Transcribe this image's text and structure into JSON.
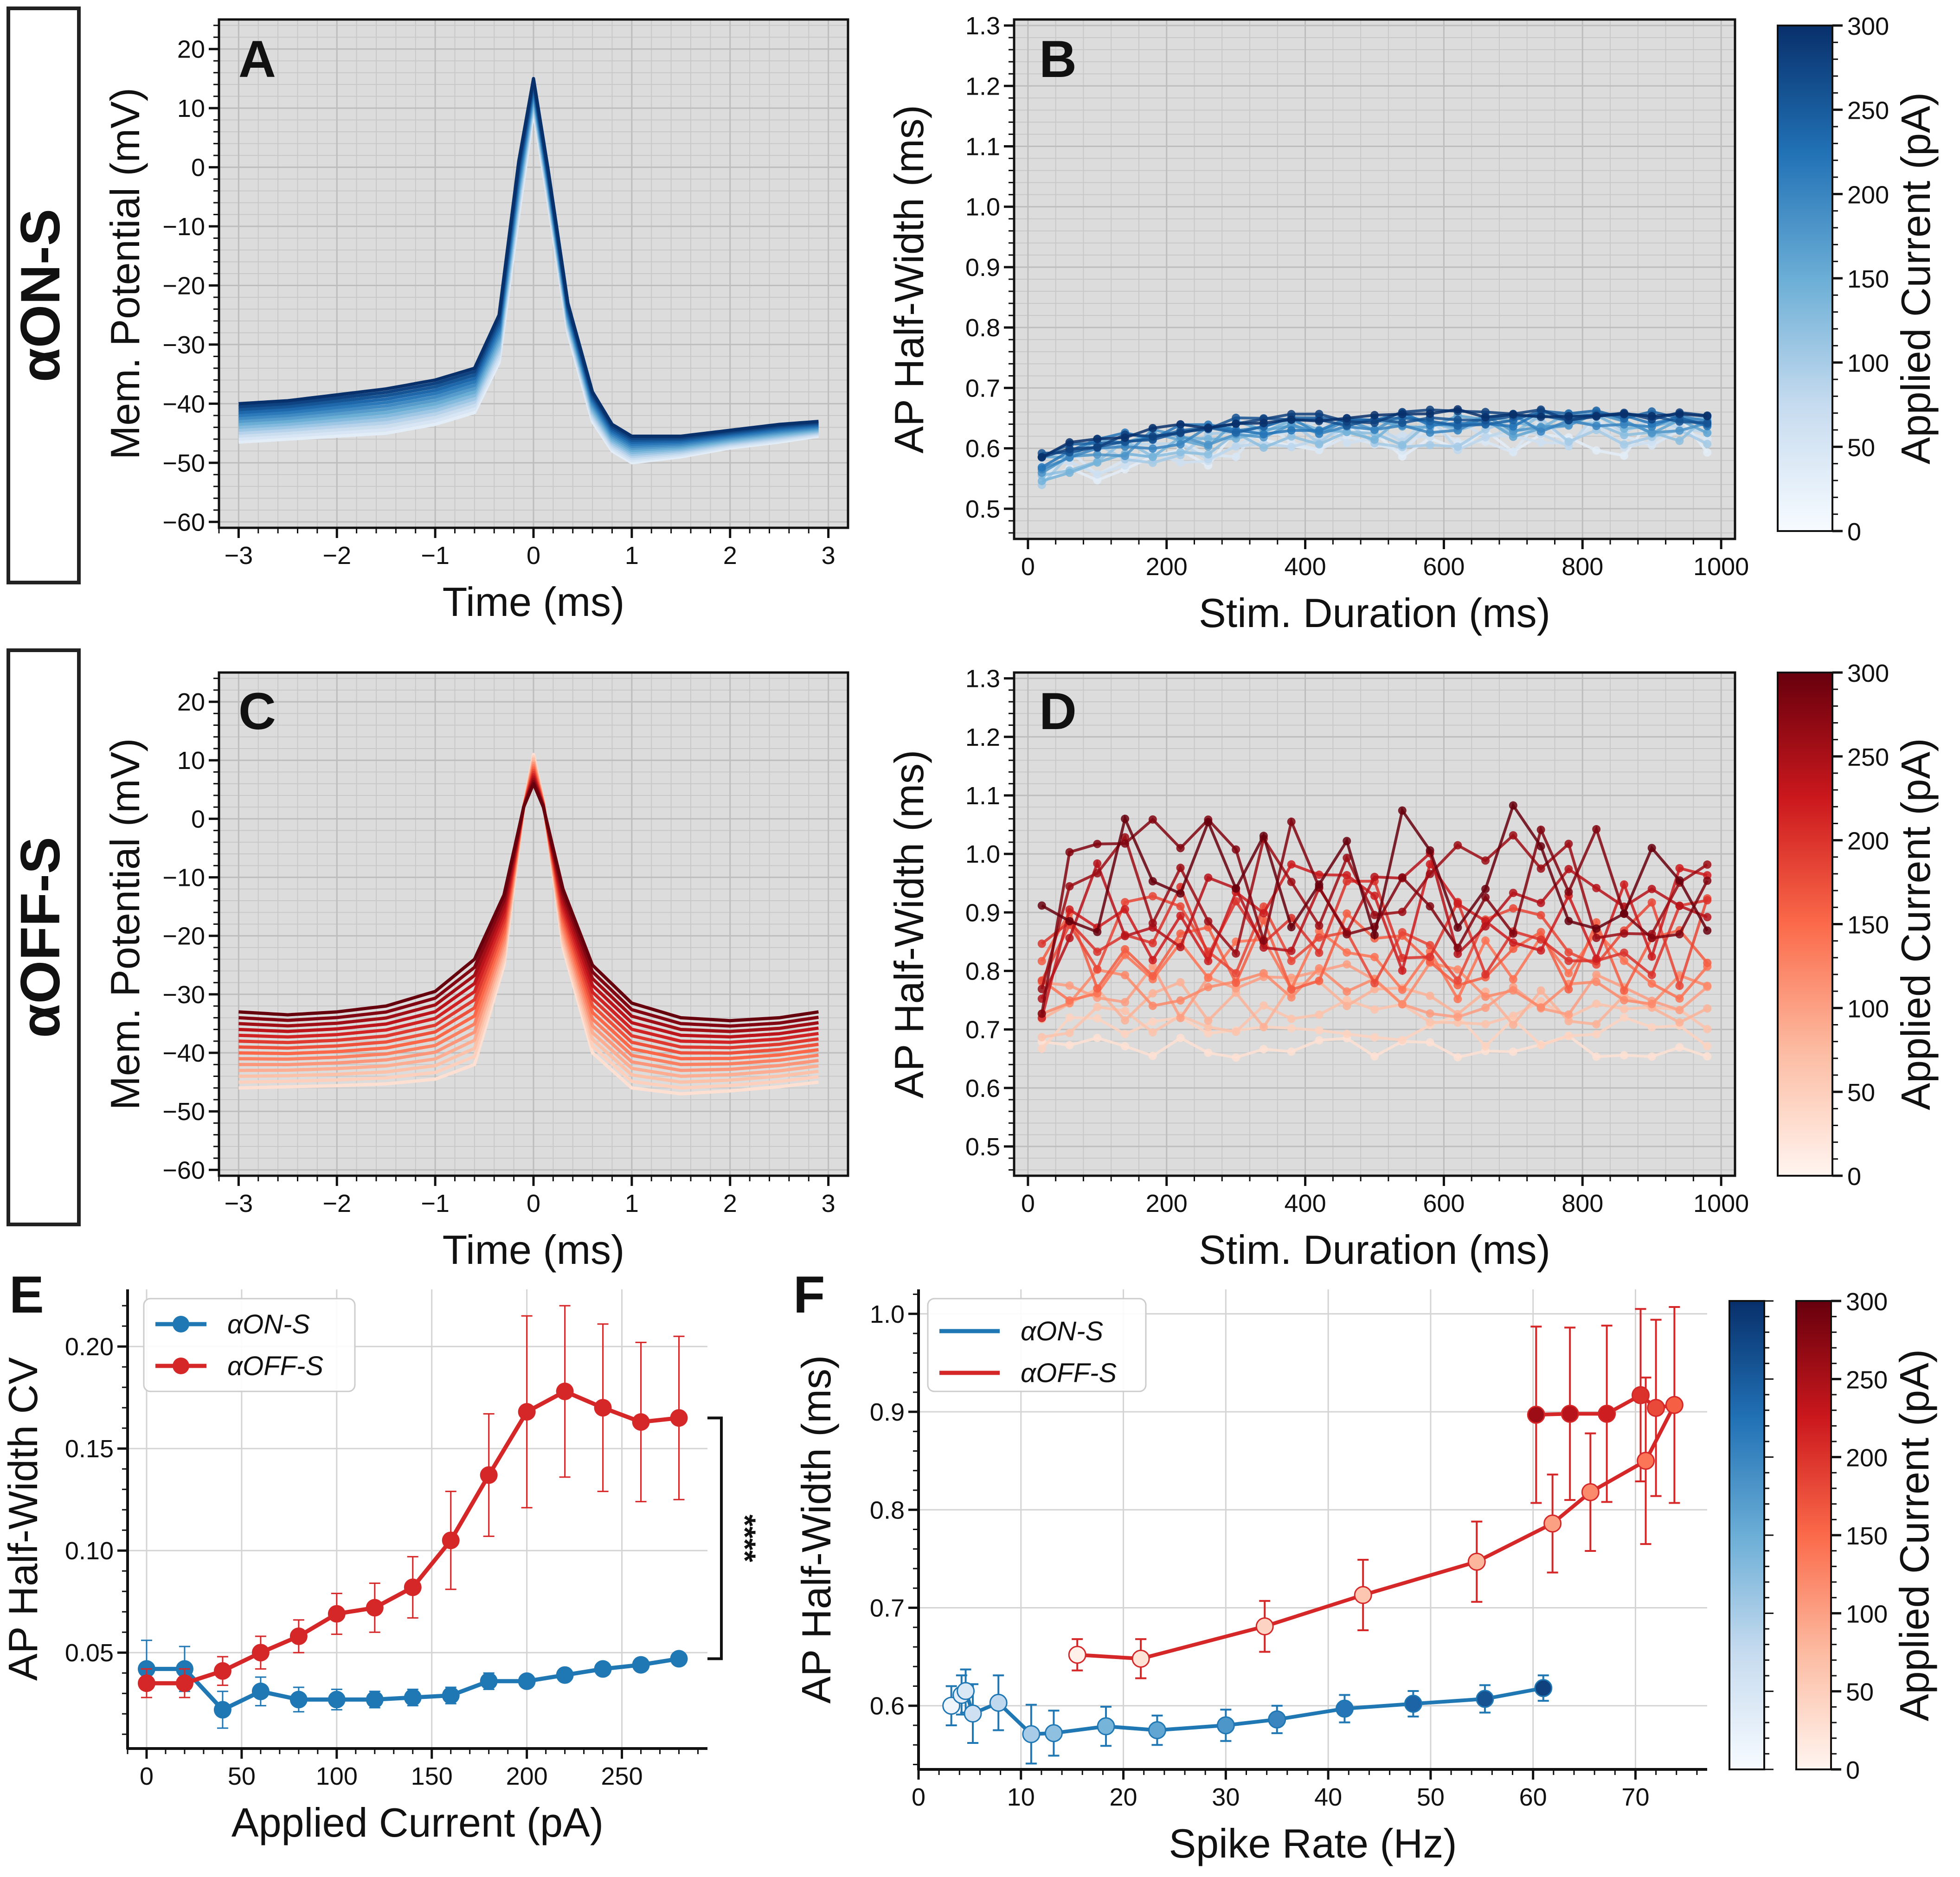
{
  "row_labels": {
    "on": "αON-S",
    "off": "αOFF-S"
  },
  "colors": {
    "on_line": "#1f77b4",
    "off_line": "#d62728",
    "panel_bg": "#dcdcdc"
  },
  "chart_data": [
    {
      "panel": "A",
      "type": "line",
      "xlabel": "Time (ms)",
      "ylabel": "Mem. Potential (mV)",
      "xlim": [
        -3.2,
        3.2
      ],
      "ylim": [
        -61,
        25
      ],
      "xticks": [
        -3,
        -2,
        -1,
        0,
        1,
        2,
        3
      ],
      "xtick_labels": [
        "−3",
        "−2",
        "−1",
        "0",
        "1",
        "2",
        "3"
      ],
      "yticks": [
        -60,
        -50,
        -40,
        -30,
        -20,
        -10,
        0,
        10,
        20
      ],
      "ytick_labels": [
        "−60",
        "−50",
        "−40",
        "−30",
        "−20",
        "−10",
        "0",
        "10",
        "20"
      ],
      "colormap": "Blues",
      "n_traces": 14,
      "trace_model": {
        "t": [
          -3,
          -2.5,
          -2,
          -1.5,
          -1,
          -0.6,
          -0.35,
          -0.15,
          0,
          0.15,
          0.35,
          0.6,
          0.8,
          1.0,
          1.5,
          2,
          2.5,
          2.9
        ],
        "start": [
          -46.5,
          -46.0,
          -45.5,
          -45.0,
          -43.5,
          -41.5,
          -33,
          -8,
          9.5,
          -6,
          -28,
          -43,
          -48,
          -50,
          -49,
          -47.5,
          -46.5,
          -45.5
        ],
        "end": [
          -40.0,
          -39.5,
          -38.5,
          -37.5,
          -36.0,
          -34.0,
          -25,
          1,
          15,
          -0.5,
          -23,
          -38,
          -43.5,
          -45.5,
          -45.5,
          -44.5,
          -43.5,
          -43
        ]
      }
    },
    {
      "panel": "B",
      "type": "line",
      "xlabel": "Stim. Duration (ms)",
      "ylabel": "AP Half-Width (ms)",
      "xlim": [
        -20,
        1020
      ],
      "ylim": [
        0.45,
        1.31
      ],
      "xticks": [
        0,
        200,
        400,
        600,
        800,
        1000
      ],
      "xtick_labels": [
        "0",
        "200",
        "400",
        "600",
        "800",
        "1000"
      ],
      "yticks": [
        0.5,
        0.6,
        0.7,
        0.8,
        0.9,
        1.0,
        1.1,
        1.2,
        1.3
      ],
      "ytick_labels": [
        "0.5",
        "0.6",
        "0.7",
        "0.8",
        "0.9",
        "1.0",
        "1.1",
        "1.2",
        "1.3"
      ],
      "colormap": "Blues",
      "n_traces": 15,
      "x_points": [
        20,
        60,
        100,
        140,
        180,
        220,
        260,
        300,
        340,
        380,
        420,
        460,
        500,
        540,
        580,
        620,
        660,
        700,
        740,
        780,
        820,
        860,
        900,
        940,
        980
      ],
      "baseline_start": 0.56,
      "baseline_plateau": 0.64,
      "noise_low_current": 0.035,
      "noise_high_current": 0.008
    },
    {
      "panel": "C",
      "type": "line",
      "xlabel": "Time (ms)",
      "ylabel": "Mem. Potential (mV)",
      "xlim": [
        -3.2,
        3.2
      ],
      "ylim": [
        -61,
        25
      ],
      "xticks": [
        -3,
        -2,
        -1,
        0,
        1,
        2,
        3
      ],
      "xtick_labels": [
        "−3",
        "−2",
        "−1",
        "0",
        "1",
        "2",
        "3"
      ],
      "yticks": [
        -60,
        -50,
        -40,
        -30,
        -20,
        -10,
        0,
        10,
        20
      ],
      "ytick_labels": [
        "−60",
        "−50",
        "−40",
        "−30",
        "−20",
        "−10",
        "0",
        "10",
        "20"
      ],
      "colormap": "Reds",
      "n_traces": 14,
      "trace_model": {
        "t": [
          -3,
          -2.5,
          -2,
          -1.5,
          -1,
          -0.6,
          -0.3,
          -0.1,
          0,
          0.1,
          0.3,
          0.6,
          1.0,
          1.5,
          2,
          2.5,
          2.9
        ],
        "start": [
          -46,
          -45.8,
          -45.6,
          -45.3,
          -44.5,
          -42,
          -25,
          2,
          11,
          3,
          -22,
          -40,
          -46,
          -47,
          -46.5,
          -45.8,
          -45
        ],
        "end": [
          -33,
          -33.5,
          -33.0,
          -32.0,
          -29.5,
          -24,
          -13,
          2,
          6,
          2,
          -12,
          -25,
          -31.5,
          -34,
          -34.5,
          -34,
          -33
        ]
      }
    },
    {
      "panel": "D",
      "type": "line",
      "xlabel": "Stim. Duration (ms)",
      "ylabel": "AP Half-Width (ms)",
      "xlim": [
        -20,
        1020
      ],
      "ylim": [
        0.45,
        1.31
      ],
      "xticks": [
        0,
        200,
        400,
        600,
        800,
        1000
      ],
      "xtick_labels": [
        "0",
        "200",
        "400",
        "600",
        "800",
        "1000"
      ],
      "yticks": [
        0.5,
        0.6,
        0.7,
        0.8,
        0.9,
        1.0,
        1.1,
        1.2,
        1.3
      ],
      "ytick_labels": [
        "0.5",
        "0.6",
        "0.7",
        "0.8",
        "0.9",
        "1.0",
        "1.1",
        "1.2",
        "1.3"
      ],
      "colormap": "Reds",
      "n_traces": 15,
      "x_points": [
        20,
        60,
        100,
        140,
        180,
        220,
        260,
        300,
        340,
        380,
        420,
        460,
        500,
        540,
        580,
        620,
        660,
        700,
        740,
        780,
        820,
        860,
        900,
        940,
        980
      ],
      "level_low_current": 0.67,
      "level_high_current": 0.97,
      "noise_low_current": 0.02,
      "noise_high_current": 0.12
    },
    {
      "panel": "E",
      "type": "line",
      "xlabel": "Applied Current (pA)",
      "ylabel": "AP Half-Width CV",
      "xlim": [
        -10,
        295
      ],
      "ylim": [
        0.003,
        0.228
      ],
      "xticks": [
        0,
        50,
        100,
        150,
        200,
        250
      ],
      "xtick_labels": [
        "0",
        "50",
        "100",
        "150",
        "200",
        "250"
      ],
      "yticks": [
        0.05,
        0.1,
        0.15,
        0.2
      ],
      "ytick_labels": [
        "0.05",
        "0.10",
        "0.15",
        "0.20"
      ],
      "categories_x": [
        0,
        20,
        40,
        60,
        80,
        100,
        120,
        140,
        160,
        180,
        200,
        220,
        240,
        260,
        280
      ],
      "series": [
        {
          "name": "αON-S",
          "color": "#1f77b4",
          "values": [
            0.042,
            0.042,
            0.022,
            0.031,
            0.027,
            0.027,
            0.027,
            0.028,
            0.029,
            0.036,
            0.036,
            0.039,
            0.042,
            0.044,
            0.047
          ],
          "errors": [
            0.014,
            0.011,
            0.009,
            0.007,
            0.006,
            0.005,
            0.004,
            0.004,
            0.004,
            0.004,
            0.003,
            0.003,
            0.003,
            0.003,
            0.003
          ]
        },
        {
          "name": "αOFF-S",
          "color": "#d62728",
          "values": [
            0.035,
            0.035,
            0.041,
            0.05,
            0.058,
            0.069,
            0.072,
            0.082,
            0.105,
            0.137,
            0.168,
            0.178,
            0.17,
            0.163,
            0.165
          ],
          "errors": [
            0.007,
            0.007,
            0.007,
            0.008,
            0.008,
            0.01,
            0.012,
            0.015,
            0.024,
            0.03,
            0.047,
            0.042,
            0.041,
            0.039,
            0.04
          ]
        }
      ],
      "legend": "top-left",
      "significance": "****"
    },
    {
      "panel": "F",
      "type": "line",
      "xlabel": "Spike Rate (Hz)",
      "ylabel": "AP Half-Width (ms)",
      "xlim": [
        0,
        77
      ],
      "ylim": [
        0.535,
        1.025
      ],
      "xticks": [
        0,
        10,
        20,
        30,
        40,
        50,
        60,
        70
      ],
      "xtick_labels": [
        "0",
        "10",
        "20",
        "30",
        "40",
        "50",
        "60",
        "70"
      ],
      "yticks": [
        0.6,
        0.7,
        0.8,
        0.9,
        1.0
      ],
      "ytick_labels": [
        "0.6",
        "0.7",
        "0.8",
        "0.9",
        "1.0"
      ],
      "series": [
        {
          "name": "αON-S",
          "color": "#1f77b4",
          "x": [
            3.2,
            4.2,
            4.6,
            5.3,
            7.8,
            11.0,
            13.2,
            18.3,
            23.3,
            30.0,
            35.0,
            41.6,
            48.3,
            55.3,
            61.0
          ],
          "y": [
            0.6,
            0.611,
            0.615,
            0.592,
            0.603,
            0.571,
            0.572,
            0.579,
            0.575,
            0.58,
            0.586,
            0.597,
            0.602,
            0.607,
            0.618
          ],
          "err": [
            0.02,
            0.02,
            0.022,
            0.03,
            0.028,
            0.03,
            0.023,
            0.02,
            0.015,
            0.016,
            0.014,
            0.014,
            0.013,
            0.014,
            0.013
          ],
          "current": [
            0,
            20,
            40,
            60,
            80,
            100,
            120,
            140,
            160,
            180,
            200,
            220,
            240,
            260,
            280
          ]
        },
        {
          "name": "αOFF-S",
          "color": "#d62728",
          "x": [
            15.5,
            21.7,
            33.8,
            43.4,
            54.5,
            61.9,
            65.6,
            71.0,
            73.8,
            72.0,
            70.5,
            67.2,
            63.6,
            60.3
          ],
          "y": [
            0.652,
            0.648,
            0.681,
            0.713,
            0.747,
            0.786,
            0.818,
            0.85,
            0.907,
            0.904,
            0.917,
            0.898,
            0.898,
            0.897
          ],
          "err": [
            0.016,
            0.02,
            0.026,
            0.036,
            0.041,
            0.05,
            0.06,
            0.085,
            0.1,
            0.09,
            0.088,
            0.09,
            0.088,
            0.09
          ],
          "current": [
            0,
            20,
            40,
            60,
            80,
            100,
            120,
            140,
            160,
            180,
            200,
            220,
            240,
            260
          ]
        }
      ],
      "legend": "top-left"
    }
  ],
  "panel_letters": [
    "A",
    "B",
    "C",
    "D",
    "E",
    "F"
  ],
  "colorbars": [
    {
      "id": "cb-B",
      "label": "Applied Current (pA)",
      "ticks": [
        "0",
        "50",
        "100",
        "150",
        "200",
        "250",
        "300"
      ],
      "cmap": "Blues"
    },
    {
      "id": "cb-D",
      "label": "Applied Current (pA)",
      "ticks": [
        "0",
        "50",
        "100",
        "150",
        "200",
        "250",
        "300"
      ],
      "cmap": "Reds"
    },
    {
      "id": "cb-F",
      "label": "Applied Current (pA)",
      "ticks": [
        "0",
        "50",
        "100",
        "150",
        "200",
        "250",
        "300"
      ],
      "cmap": "Reds+Blues"
    }
  ],
  "legend_E": [
    "αON-S",
    "αOFF-S"
  ],
  "legend_F": [
    "αON-S",
    "αOFF-S"
  ],
  "sig_label": "****"
}
